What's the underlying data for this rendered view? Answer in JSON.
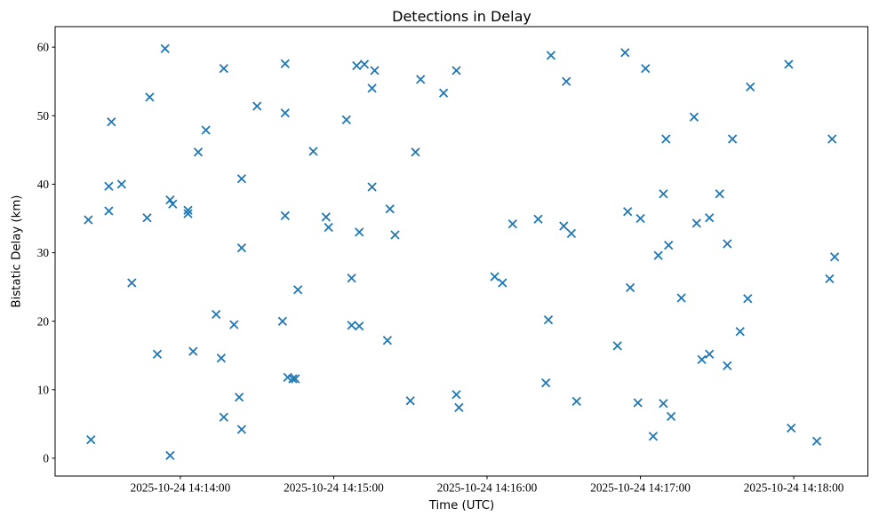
{
  "chart_data": {
    "type": "scatter",
    "title": "Detections in Delay",
    "xlabel": "Time (UTC)",
    "ylabel": "Bistatic Delay (km)",
    "date": "2025-10-24",
    "marker": "x",
    "marker_color": "#1f77b4",
    "axis_color": "#000000",
    "background": "#ffffff",
    "grid": false,
    "legend": "none",
    "y_ticks": [
      0,
      10,
      20,
      30,
      40,
      50,
      60
    ],
    "x_ticks": [
      {
        "label": "2025-10-24 14:14:00",
        "time": "14:14:00"
      },
      {
        "label": "2025-10-24 14:15:00",
        "time": "14:15:00"
      },
      {
        "label": "2025-10-24 14:16:00",
        "time": "14:16:00"
      },
      {
        "label": "2025-10-24 14:17:00",
        "time": "14:17:00"
      },
      {
        "label": "2025-10-24 14:18:00",
        "time": "14:18:00"
      }
    ],
    "xlim": [
      "14:13:11",
      "14:18:29"
    ],
    "ylim": [
      -2.6,
      63.0
    ],
    "points_format": [
      "time_utc",
      "bistatic_delay_km"
    ],
    "points": [
      [
        "14:13:24",
        34.8
      ],
      [
        "14:13:25",
        2.7
      ],
      [
        "14:13:32",
        39.7
      ],
      [
        "14:13:32",
        36.1
      ],
      [
        "14:13:33",
        49.1
      ],
      [
        "14:13:37",
        40.0
      ],
      [
        "14:13:41",
        25.6
      ],
      [
        "14:13:47",
        35.1
      ],
      [
        "14:13:48",
        52.7
      ],
      [
        "14:13:51",
        15.2
      ],
      [
        "14:13:54",
        59.8
      ],
      [
        "14:13:56",
        37.7
      ],
      [
        "14:13:56",
        0.4
      ],
      [
        "14:13:57",
        37.1
      ],
      [
        "14:14:03",
        36.2
      ],
      [
        "14:14:03",
        35.7
      ],
      [
        "14:14:05",
        15.6
      ],
      [
        "14:14:07",
        44.7
      ],
      [
        "14:14:10",
        47.9
      ],
      [
        "14:14:14",
        21.0
      ],
      [
        "14:14:16",
        14.6
      ],
      [
        "14:14:17",
        56.9
      ],
      [
        "14:14:17",
        6.0
      ],
      [
        "14:14:21",
        19.5
      ],
      [
        "14:14:23",
        8.9
      ],
      [
        "14:14:24",
        40.8
      ],
      [
        "14:14:24",
        30.7
      ],
      [
        "14:14:24",
        4.2
      ],
      [
        "14:14:30",
        51.4
      ],
      [
        "14:14:40",
        20.0
      ],
      [
        "14:14:41",
        57.6
      ],
      [
        "14:14:41",
        50.4
      ],
      [
        "14:14:41",
        35.4
      ],
      [
        "14:14:42",
        11.8
      ],
      [
        "14:14:44",
        11.6
      ],
      [
        "14:14:45",
        11.6
      ],
      [
        "14:14:46",
        24.6
      ],
      [
        "14:14:52",
        44.8
      ],
      [
        "14:14:57",
        35.2
      ],
      [
        "14:14:58",
        33.7
      ],
      [
        "14:15:05",
        49.4
      ],
      [
        "14:15:07",
        26.3
      ],
      [
        "14:15:07",
        19.4
      ],
      [
        "14:15:09",
        57.3
      ],
      [
        "14:15:10",
        33.0
      ],
      [
        "14:15:10",
        19.3
      ],
      [
        "14:15:12",
        57.5
      ],
      [
        "14:15:15",
        54.0
      ],
      [
        "14:15:15",
        39.6
      ],
      [
        "14:15:16",
        56.6
      ],
      [
        "14:15:21",
        17.2
      ],
      [
        "14:15:22",
        36.4
      ],
      [
        "14:15:24",
        32.6
      ],
      [
        "14:15:30",
        8.4
      ],
      [
        "14:15:32",
        44.7
      ],
      [
        "14:15:34",
        55.3
      ],
      [
        "14:15:43",
        53.3
      ],
      [
        "14:15:48",
        56.6
      ],
      [
        "14:15:48",
        9.3
      ],
      [
        "14:15:49",
        7.4
      ],
      [
        "14:16:03",
        26.5
      ],
      [
        "14:16:06",
        25.6
      ],
      [
        "14:16:10",
        34.2
      ],
      [
        "14:16:20",
        34.9
      ],
      [
        "14:16:23",
        11.0
      ],
      [
        "14:16:24",
        20.2
      ],
      [
        "14:16:25",
        58.8
      ],
      [
        "14:16:30",
        33.9
      ],
      [
        "14:16:31",
        55.0
      ],
      [
        "14:16:33",
        32.8
      ],
      [
        "14:16:35",
        8.3
      ],
      [
        "14:16:51",
        16.4
      ],
      [
        "14:16:54",
        59.2
      ],
      [
        "14:16:55",
        36.0
      ],
      [
        "14:16:56",
        24.9
      ],
      [
        "14:16:59",
        8.1
      ],
      [
        "14:17:00",
        35.0
      ],
      [
        "14:17:02",
        56.9
      ],
      [
        "14:17:05",
        3.2
      ],
      [
        "14:17:07",
        29.6
      ],
      [
        "14:17:09",
        38.6
      ],
      [
        "14:17:09",
        8.0
      ],
      [
        "14:17:10",
        46.6
      ],
      [
        "14:17:11",
        31.1
      ],
      [
        "14:17:12",
        6.1
      ],
      [
        "14:17:16",
        23.4
      ],
      [
        "14:17:21",
        49.8
      ],
      [
        "14:17:22",
        34.3
      ],
      [
        "14:17:24",
        14.4
      ],
      [
        "14:17:27",
        35.1
      ],
      [
        "14:17:27",
        15.2
      ],
      [
        "14:17:31",
        38.6
      ],
      [
        "14:17:34",
        31.3
      ],
      [
        "14:17:34",
        13.5
      ],
      [
        "14:17:36",
        46.6
      ],
      [
        "14:17:39",
        18.5
      ],
      [
        "14:17:42",
        23.3
      ],
      [
        "14:17:43",
        54.2
      ],
      [
        "14:17:58",
        57.5
      ],
      [
        "14:17:59",
        4.4
      ],
      [
        "14:18:09",
        2.5
      ],
      [
        "14:18:14",
        26.2
      ],
      [
        "14:18:15",
        46.6
      ],
      [
        "14:18:16",
        29.4
      ]
    ]
  }
}
